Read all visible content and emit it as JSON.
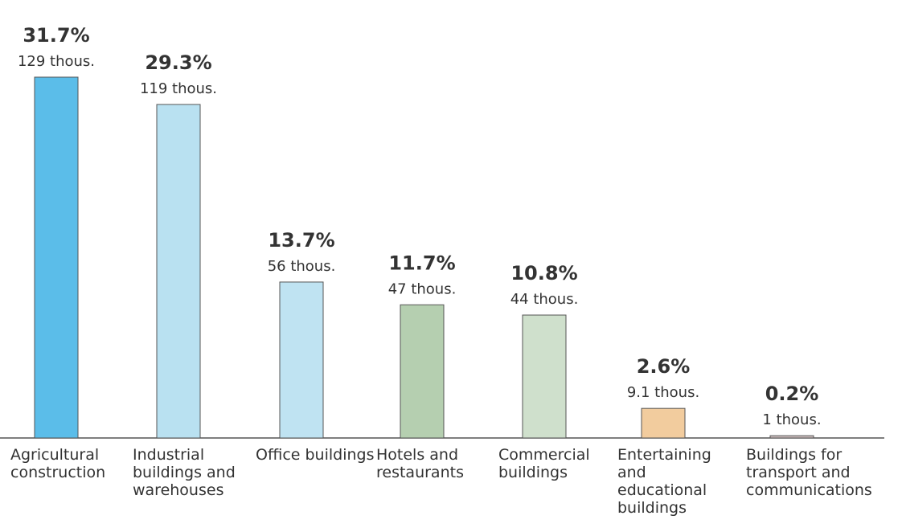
{
  "chart_data": {
    "type": "bar",
    "categories": [
      "Agricultural construction",
      "Industrial buildings and warehouses",
      "Office buildings",
      "Hotels and restaurants",
      "Commercial buildings",
      "Entertaining and educational buildings",
      "Buildings for transport and communications"
    ],
    "values": [
      31.7,
      29.3,
      13.7,
      11.7,
      10.8,
      2.6,
      0.2
    ],
    "value_labels": [
      "31.7%",
      "29.3%",
      "13.7%",
      "11.7%",
      "10.8%",
      "2.6%",
      "0.2%"
    ],
    "counts": [
      129,
      119,
      56,
      47,
      44,
      9.1,
      1
    ],
    "count_labels": [
      "129 thous.",
      "119 thous.",
      "56 thous.",
      "47 thous.",
      "44 thous.",
      "9.1 thous.",
      "1 thous."
    ],
    "colors": [
      "#5bbde9",
      "#b9e1f1",
      "#bfe3f2",
      "#b5cfb0",
      "#cfe0cc",
      "#f2cc9e",
      "#cdbdbd"
    ]
  }
}
